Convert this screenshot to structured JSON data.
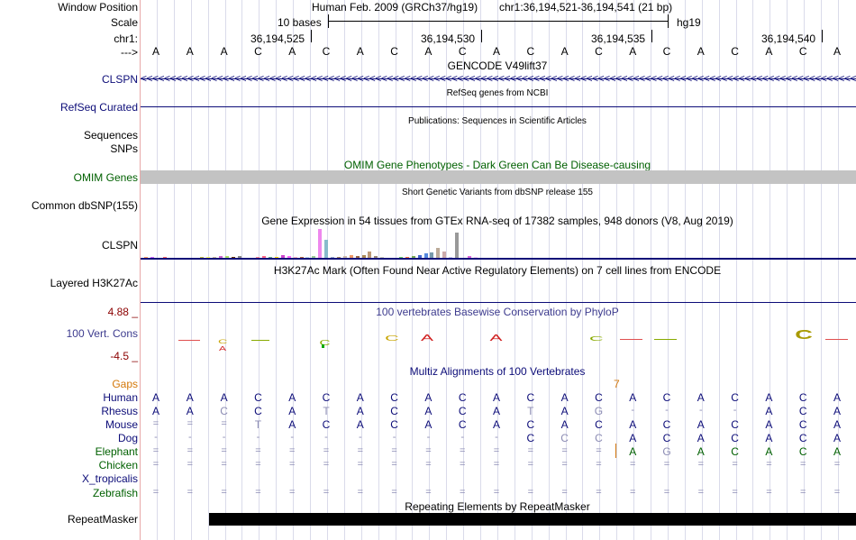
{
  "header": {
    "window_position_label": "Window Position",
    "scale_label": "Scale",
    "chrom_label": "chr1:",
    "arrow_label": "--->",
    "assembly_text": "Human Feb. 2009 (GRCh37/hg19)",
    "position_text": "chr1:36,194,521-36,194,541 (21 bp)",
    "scale_text": "10 bases",
    "db_text": "hg19",
    "coords": [
      "36,194,525",
      "36,194,530",
      "36,194,535",
      "36,194,540"
    ]
  },
  "sequence": [
    "A",
    "A",
    "A",
    "C",
    "A",
    "C",
    "A",
    "C",
    "A",
    "C",
    "A",
    "C",
    "A",
    "C",
    "A",
    "C",
    "A",
    "C",
    "A",
    "C",
    "A"
  ],
  "tracks": {
    "gencode": {
      "title": "GENCODE V49lift37",
      "left_label": "CLSPN",
      "strand_glyphs": "<<<<<<<<<<<<<<<<<<<<<<<<<<<<<<<<<<<<<<<<<<<<<<<<<<<<<<<<<<<<<<<<<<<<<<<<<<<<<<<<<<<<<<<<<<<<<<<<<<<<<<<<<<<<<<<<<<<<<<<<<<<<<"
    },
    "refseq": {
      "title": "RefSeq genes from NCBI",
      "left_label": "RefSeq Curated"
    },
    "publications": {
      "title": "Publications: Sequences in Scientific Articles",
      "left_label_1": "Sequences",
      "left_label_2": "SNPs"
    },
    "omim": {
      "title": "OMIM Gene Phenotypes - Dark Green Can Be Disease-causing",
      "left_label": "OMIM Genes"
    },
    "dbsnp": {
      "title": "Short Genetic Variants from dbSNP release 155",
      "left_label": "Common dbSNP(155)"
    },
    "gtex": {
      "title": "Gene Expression in 54 tissues from GTEx RNA-seq of 17382 samples, 948 donors (V8, Aug 2019)",
      "left_label": "CLSPN"
    },
    "h3k27ac": {
      "title": "H3K27Ac Mark (Often Found Near Active Regulatory Elements) on 7 cell lines from ENCODE",
      "left_label": "Layered H3K27Ac"
    },
    "phylop": {
      "title": "100 vertebrates Basewise Conservation by PhyloP",
      "left_label": "100 Vert. Cons",
      "max_label": "4.88 _",
      "min_label": "-4.5 _"
    },
    "multiz": {
      "title": "Multiz Alignments of 100 Vertebrates",
      "gaps_label": "Gaps",
      "gap_mark": "7"
    },
    "repeatmasker": {
      "title": "Repeating Elements by RepeatMasker",
      "left_label": "RepeatMasker"
    }
  },
  "alignments": [
    {
      "species": "Human",
      "color": "#0c0c78",
      "bases": [
        "A",
        "A",
        "A",
        "C",
        "A",
        "C",
        "A",
        "C",
        "A",
        "C",
        "A",
        "C",
        "A",
        "C",
        "A",
        "C",
        "A",
        "C",
        "A",
        "C",
        "A"
      ],
      "dim": []
    },
    {
      "species": "Rhesus",
      "color": "#0c0c78",
      "bases": [
        "A",
        "A",
        "C",
        "C",
        "A",
        "T",
        "A",
        "C",
        "A",
        "C",
        "A",
        "T",
        "A",
        "G",
        "-",
        "-",
        "-",
        "-",
        "A",
        "C",
        "A"
      ],
      "dim": [
        2,
        5,
        11,
        13
      ]
    },
    {
      "species": "Mouse",
      "color": "#0c0c78",
      "bases": [
        "=",
        "=",
        "=",
        "T",
        "A",
        "C",
        "A",
        "C",
        "A",
        "C",
        "A",
        "C",
        "A",
        "C",
        "A",
        "C",
        "A",
        "C",
        "A",
        "C",
        "A"
      ],
      "dim": [
        3
      ]
    },
    {
      "species": "Dog",
      "color": "#0c0c78",
      "bases": [
        "-",
        "-",
        "-",
        "-",
        "-",
        "-",
        "-",
        "-",
        "-",
        "-",
        "-",
        "C",
        "C",
        "C",
        "A",
        "C",
        "A",
        "C",
        "A",
        "C",
        "A"
      ],
      "dim": [
        12,
        13
      ]
    },
    {
      "species": "Elephant",
      "color": "#006000",
      "bases": [
        "=",
        "=",
        "=",
        "=",
        "=",
        "=",
        "=",
        "=",
        "=",
        "=",
        "=",
        "=",
        "=",
        "=",
        "A",
        "G",
        "A",
        "C",
        "A",
        "C",
        "A"
      ],
      "dim": [
        15
      ]
    },
    {
      "species": "Chicken",
      "color": "#006000",
      "bases": [
        "=",
        "=",
        "=",
        "=",
        "=",
        "=",
        "=",
        "=",
        "=",
        "=",
        "=",
        "=",
        "=",
        "=",
        "=",
        "=",
        "=",
        "=",
        "=",
        "=",
        "="
      ],
      "dim": []
    },
    {
      "species": "X_tropicalis",
      "color": "#0c0c78",
      "bases": [],
      "dim": []
    },
    {
      "species": "Zebrafish",
      "color": "#006000",
      "bases": [
        "=",
        "=",
        "=",
        "=",
        "=",
        "=",
        "=",
        "=",
        "=",
        "=",
        "=",
        "=",
        "=",
        "=",
        "=",
        "=",
        "=",
        "=",
        "=",
        "=",
        "="
      ],
      "dim": []
    }
  ],
  "gtex_values": [
    2,
    2,
    1,
    2,
    0,
    0,
    1,
    1,
    1,
    2,
    2,
    2,
    3,
    3,
    2,
    3,
    1,
    1,
    2,
    3,
    2,
    2,
    4,
    3,
    2,
    2,
    2,
    3,
    34,
    22,
    2,
    2,
    3,
    4,
    3,
    4,
    8,
    3,
    2,
    1,
    1,
    2,
    2,
    3,
    4,
    6,
    7,
    12,
    8,
    2,
    30,
    1,
    3,
    2
  ],
  "gtex_colors": [
    "#ff9c61",
    "#cc66ff",
    "#a6a6ff",
    "#ff6666",
    "#ffcc00",
    "#ffaa00",
    "#4499cc",
    "#007733",
    "#22aaaa",
    "#bbbb44",
    "#ffff66",
    "#ccbb99",
    "#cc66cc",
    "#aadd66",
    "#663300",
    "#888888",
    "#eecc99",
    "#eeee88",
    "#ff8899",
    "#ff6688",
    "#66aa88",
    "#ffd700",
    "#cc44cc",
    "#ff66ff",
    "#ffb6c1",
    "#aa6644",
    "#bbddee",
    "#99cc99",
    "#ee88ee",
    "#88bbcc",
    "#99aacc",
    "#aa8866",
    "#ccbbaa",
    "#ee9966",
    "#996644",
    "#aa8855",
    "#bb9977",
    "#998877",
    "#ccccbb",
    "#bbaa66",
    "#cccc33",
    "#66cc66",
    "#ff7744",
    "#77aa55",
    "#4466cc",
    "#5588dd",
    "#7799aa",
    "#bbaa99",
    "#ccaaaa",
    "#ccccee",
    "#999999",
    "#ddddaa",
    "#dd66dd",
    "#ffccff"
  ],
  "colors": {
    "navy": "#0c0c78",
    "green": "#006000",
    "maroon": "#8b0000",
    "omim_bar": "#c3c3c3"
  }
}
